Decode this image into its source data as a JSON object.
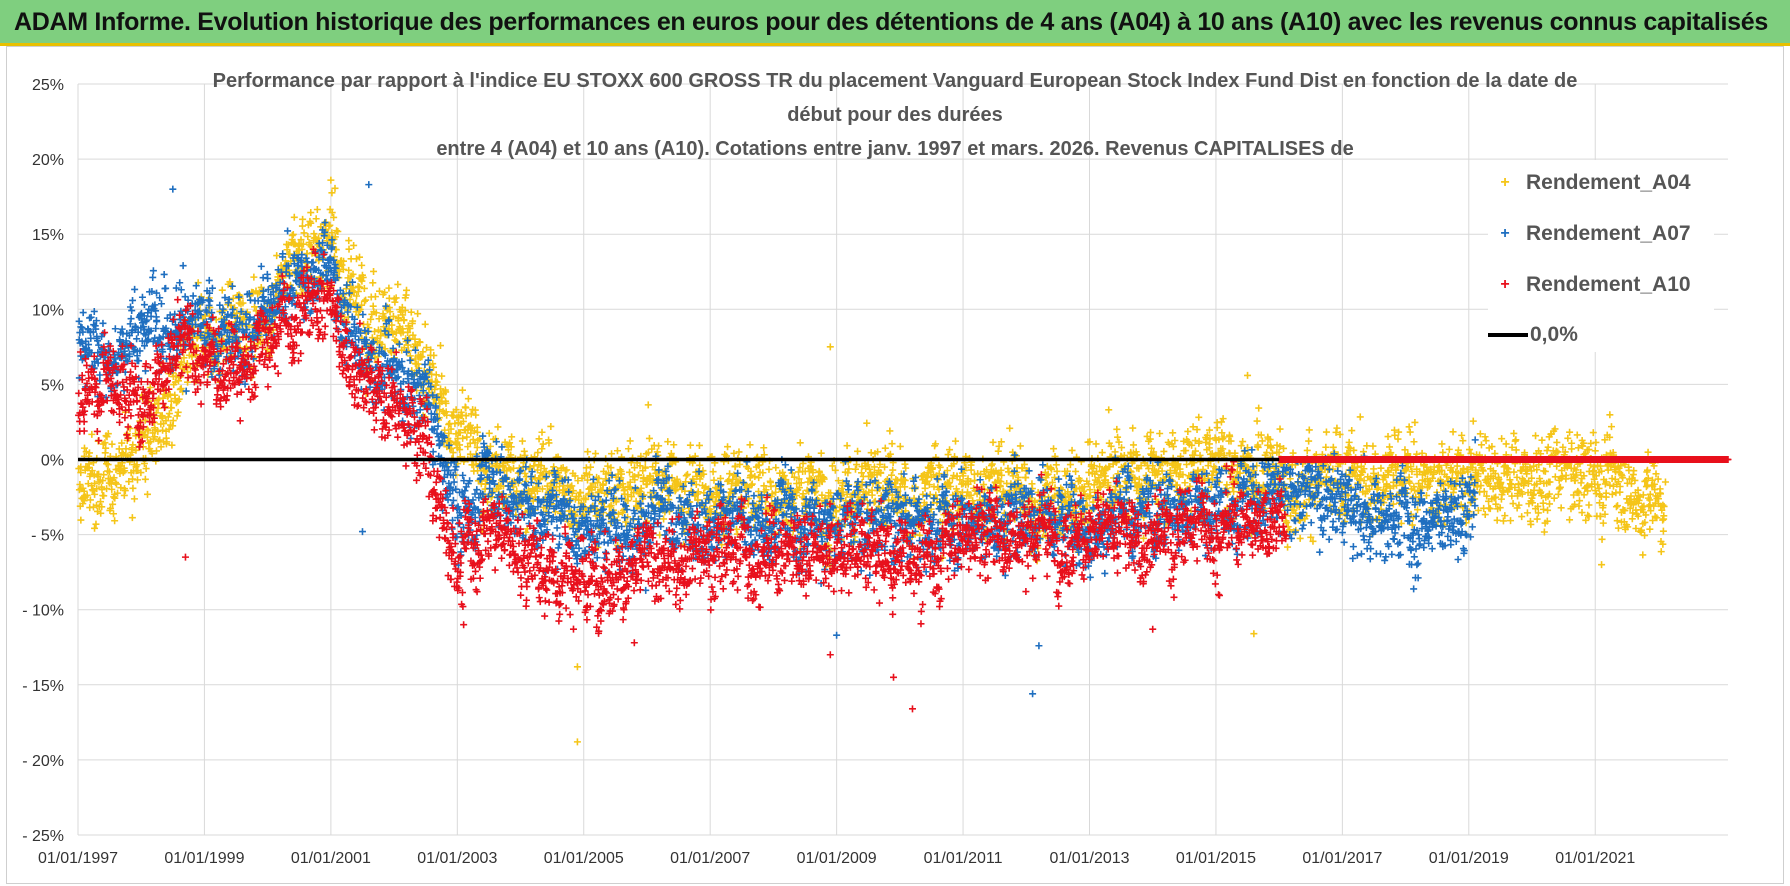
{
  "header": {
    "title": "ADAM Informe. Evolution historique des performances en euros pour des détentions de 4 ans (A04) à 10 ans (A10) avec les revenus connus capitalisés"
  },
  "chart_data": {
    "type": "scatter",
    "title_lines": [
      "Performance par rapport à l'indice EU STOXX 600 GROSS TR  du placement Vanguard European Stock Index Fund Dist en fonction de la date de",
      "début pour des durées",
      "entre 4 (A04) et 10 ans (A10). Cotations entre janv. 1997 et mars. 2026. Revenus CAPITALISES de"
    ],
    "xlabel": "",
    "ylabel": "",
    "x_tick_labels": [
      "01/01/1997",
      "01/01/1999",
      "01/01/2001",
      "01/01/2003",
      "01/01/2005",
      "01/01/2007",
      "01/01/2009",
      "01/01/2011",
      "01/01/2013",
      "01/01/2015",
      "01/01/2017",
      "01/01/2019",
      "01/01/2021"
    ],
    "x_ticks_years": [
      1997,
      1999,
      2001,
      2003,
      2005,
      2007,
      2009,
      2011,
      2013,
      2015,
      2017,
      2019,
      2021
    ],
    "xlim": [
      1997.0,
      2023.1
    ],
    "ylim": [
      -25,
      25
    ],
    "y_ticks": [
      25,
      20,
      15,
      10,
      5,
      0,
      -5,
      -10,
      -15,
      -20,
      -25
    ],
    "y_tick_labels": [
      "25%",
      "20%",
      "15%",
      "10%",
      "5%",
      "0%",
      "- 5%",
      "- 10%",
      "- 15%",
      "- 20%",
      "- 25%"
    ],
    "reference_line": {
      "name": "0,0%",
      "value": 0,
      "color": "#000000"
    },
    "legend": [
      {
        "name": "Rendement_A04",
        "color": "#f5c518"
      },
      {
        "name": "Rendement_A07",
        "color": "#1f6fc0"
      },
      {
        "name": "Rendement_A10",
        "color": "#e8101c"
      },
      {
        "name": "0,0%",
        "color": "#000000"
      }
    ],
    "series": [
      {
        "name": "Rendement_A04",
        "color": "#f5c518",
        "x_range": [
          1997.0,
          2022.1
        ],
        "trend": [
          [
            1997.0,
            -2
          ],
          [
            1997.5,
            -1
          ],
          [
            1998.0,
            1
          ],
          [
            1998.5,
            4
          ],
          [
            1999.0,
            8
          ],
          [
            1999.5,
            9
          ],
          [
            2000.0,
            10
          ],
          [
            2000.5,
            14
          ],
          [
            2001.0,
            15
          ],
          [
            2001.3,
            11
          ],
          [
            2002.0,
            9
          ],
          [
            2002.5,
            5
          ],
          [
            2003.0,
            2
          ],
          [
            2003.5,
            -1
          ],
          [
            2004.0,
            -1
          ],
          [
            2005.0,
            -2
          ],
          [
            2006.0,
            -2
          ],
          [
            2007.0,
            -2
          ],
          [
            2008.0,
            -2
          ],
          [
            2009.0,
            -2
          ],
          [
            2010.0,
            -3
          ],
          [
            2011.0,
            -2
          ],
          [
            2012.0,
            -2
          ],
          [
            2013.0,
            -2
          ],
          [
            2014.0,
            -1
          ],
          [
            2015.0,
            0
          ],
          [
            2016.0,
            -1
          ],
          [
            2017.0,
            -2
          ],
          [
            2018.0,
            -1
          ],
          [
            2019.0,
            -1
          ],
          [
            2020.0,
            -1
          ],
          [
            2021.0,
            -1
          ],
          [
            2022.1,
            -3
          ]
        ],
        "spread": 2.4
      },
      {
        "name": "Rendement_A07",
        "color": "#1f6fc0",
        "x_range": [
          1997.0,
          2019.1
        ],
        "trend": [
          [
            1997.0,
            8
          ],
          [
            1997.5,
            7
          ],
          [
            1998.0,
            9
          ],
          [
            1998.5,
            10
          ],
          [
            1999.0,
            8
          ],
          [
            1999.5,
            8
          ],
          [
            2000.0,
            10
          ],
          [
            2000.5,
            12
          ],
          [
            2001.0,
            13
          ],
          [
            2001.3,
            8
          ],
          [
            2002.0,
            6
          ],
          [
            2002.5,
            4
          ],
          [
            2003.0,
            -3
          ],
          [
            2003.5,
            -1
          ],
          [
            2004.0,
            -3
          ],
          [
            2005.0,
            -4
          ],
          [
            2006.0,
            -4
          ],
          [
            2007.0,
            -4
          ],
          [
            2008.0,
            -4
          ],
          [
            2009.0,
            -4
          ],
          [
            2010.0,
            -4
          ],
          [
            2011.0,
            -4
          ],
          [
            2012.0,
            -3
          ],
          [
            2013.0,
            -4
          ],
          [
            2014.0,
            -3
          ],
          [
            2015.0,
            -3
          ],
          [
            2016.0,
            -2
          ],
          [
            2017.0,
            -3
          ],
          [
            2018.0,
            -4
          ],
          [
            2019.1,
            -3
          ]
        ],
        "spread": 2.2
      },
      {
        "name": "Rendement_A10",
        "color": "#e8101c",
        "x_range": [
          1997.0,
          2016.1
        ],
        "trend": [
          [
            1997.0,
            5
          ],
          [
            1997.5,
            6
          ],
          [
            1998.0,
            4
          ],
          [
            1998.5,
            7
          ],
          [
            1999.0,
            7
          ],
          [
            1999.5,
            6
          ],
          [
            2000.0,
            8
          ],
          [
            2000.5,
            10
          ],
          [
            2001.0,
            11
          ],
          [
            2001.3,
            6
          ],
          [
            2002.0,
            3
          ],
          [
            2002.5,
            1
          ],
          [
            2003.0,
            -7
          ],
          [
            2003.5,
            -4
          ],
          [
            2004.0,
            -6
          ],
          [
            2005.0,
            -8
          ],
          [
            2006.0,
            -7
          ],
          [
            2007.0,
            -6
          ],
          [
            2008.0,
            -6
          ],
          [
            2009.0,
            -6
          ],
          [
            2010.0,
            -7
          ],
          [
            2011.0,
            -5
          ],
          [
            2012.0,
            -5
          ],
          [
            2013.0,
            -5
          ],
          [
            2014.0,
            -5
          ],
          [
            2015.0,
            -4
          ],
          [
            2016.1,
            -4
          ]
        ],
        "spread": 2.2,
        "zero_segment_x_range": [
          2016.0,
          2023.1
        ]
      }
    ],
    "outliers": [
      {
        "series": "Rendement_A04",
        "x": 2004.9,
        "y": -18.8
      },
      {
        "series": "Rendement_A04",
        "x": 2004.9,
        "y": -13.8
      },
      {
        "series": "Rendement_A04",
        "x": 2008.9,
        "y": 7.5
      },
      {
        "series": "Rendement_A04",
        "x": 2015.5,
        "y": 5.6
      },
      {
        "series": "Rendement_A04",
        "x": 2015.6,
        "y": -11.6
      },
      {
        "series": "Rendement_A04",
        "x": 2021.1,
        "y": -7.0
      },
      {
        "series": "Rendement_A04",
        "x": 2001.0,
        "y": 18.6
      },
      {
        "series": "Rendement_A07",
        "x": 2012.1,
        "y": -15.6
      },
      {
        "series": "Rendement_A07",
        "x": 2012.2,
        "y": -12.4
      },
      {
        "series": "Rendement_A07",
        "x": 1998.5,
        "y": 18.0
      },
      {
        "series": "Rendement_A07",
        "x": 2001.6,
        "y": 18.3
      },
      {
        "series": "Rendement_A07",
        "x": 2009.0,
        "y": -11.7
      },
      {
        "series": "Rendement_A07",
        "x": 2001.5,
        "y": -4.8
      },
      {
        "series": "Rendement_A10",
        "x": 2010.2,
        "y": -16.6
      },
      {
        "series": "Rendement_A10",
        "x": 2009.9,
        "y": -14.5
      },
      {
        "series": "Rendement_A10",
        "x": 1998.7,
        "y": -6.5
      },
      {
        "series": "Rendement_A10",
        "x": 2003.1,
        "y": -11.0
      },
      {
        "series": "Rendement_A10",
        "x": 2014.0,
        "y": -11.3
      },
      {
        "series": "Rendement_A10",
        "x": 2008.9,
        "y": -13.0
      },
      {
        "series": "Rendement_A10",
        "x": 2005.8,
        "y": -12.2
      }
    ]
  }
}
